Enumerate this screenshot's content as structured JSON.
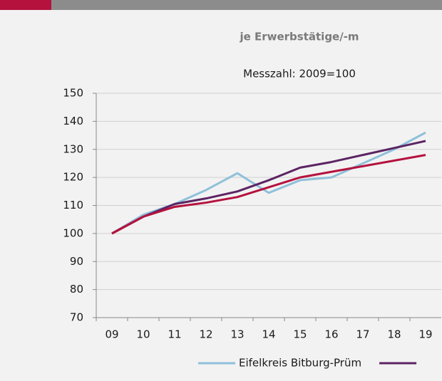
{
  "chart_data": {
    "type": "line",
    "title": "je Erwerbstätige/-m",
    "subtitle": "Messzahl: 2009=100",
    "categories": [
      "09",
      "10",
      "11",
      "12",
      "13",
      "14",
      "15",
      "16",
      "17",
      "18",
      "19"
    ],
    "series": [
      {
        "name": "Eifelkreis Bitburg-Prüm",
        "color": "#8fc0da",
        "values": [
          100,
          106.7,
          110.5,
          115.5,
          121.5,
          114.5,
          119,
          120,
          125,
          130,
          136
        ]
      },
      {
        "color": "#5c2463",
        "values": [
          100,
          106,
          110.5,
          112.5,
          115,
          119,
          123.5,
          125.5,
          128,
          130.5,
          133
        ]
      },
      {
        "color": "#b5123e",
        "values": [
          100,
          106,
          109.5,
          111,
          113,
          116.5,
          120,
          122,
          124,
          126,
          128
        ]
      }
    ],
    "ylim": [
      70,
      150
    ],
    "yticks": [
      70,
      80,
      90,
      100,
      110,
      120,
      130,
      140,
      150
    ],
    "grid": true
  }
}
